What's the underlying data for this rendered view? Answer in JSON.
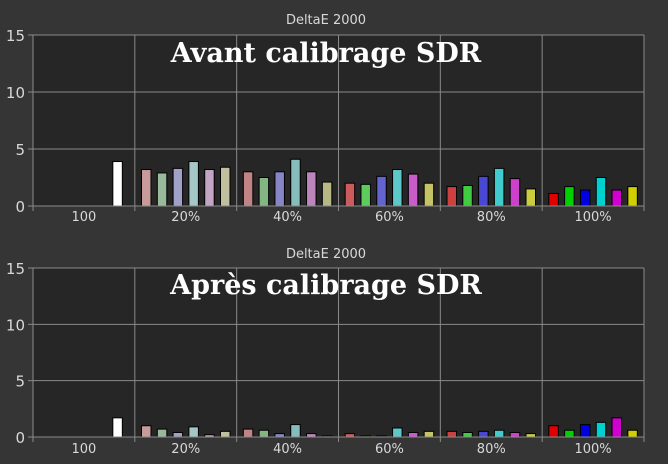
{
  "chart_data": [
    {
      "type": "bar",
      "title": "DeltaE 2000",
      "heading": "Avant calibrage SDR",
      "ylim": [
        0,
        15
      ],
      "yticks": [
        "0",
        "5",
        "10",
        "15"
      ],
      "categories": [
        "100",
        "20%",
        "40%",
        "60%",
        "80%",
        "100%"
      ],
      "grid": true,
      "groups": [
        {
          "label": "100",
          "bars": [
            {
              "color": "#ffffff",
              "value": 3.9
            }
          ]
        },
        {
          "label": "20%",
          "bars": [
            {
              "color": "#c89a9a",
              "value": 3.2
            },
            {
              "color": "#9ab89a",
              "value": 2.9
            },
            {
              "color": "#a0a0c8",
              "value": 3.3
            },
            {
              "color": "#a4c6c6",
              "value": 3.9
            },
            {
              "color": "#c4a4c4",
              "value": 3.2
            },
            {
              "color": "#c0c09e",
              "value": 3.4
            }
          ]
        },
        {
          "label": "40%",
          "bars": [
            {
              "color": "#c08484",
              "value": 3.0
            },
            {
              "color": "#84b684",
              "value": 2.5
            },
            {
              "color": "#8686c6",
              "value": 3.0
            },
            {
              "color": "#86bcbc",
              "value": 4.1
            },
            {
              "color": "#bc86bc",
              "value": 3.0
            },
            {
              "color": "#b8b886",
              "value": 2.1
            }
          ]
        },
        {
          "label": "60%",
          "bars": [
            {
              "color": "#cc5c5c",
              "value": 2.0
            },
            {
              "color": "#5ccc5c",
              "value": 1.9
            },
            {
              "color": "#6464d0",
              "value": 2.6
            },
            {
              "color": "#5cc8c8",
              "value": 3.2
            },
            {
              "color": "#c85cc8",
              "value": 2.8
            },
            {
              "color": "#c4c464",
              "value": 2.0
            }
          ]
        },
        {
          "label": "80%",
          "bars": [
            {
              "color": "#cc4040",
              "value": 1.7
            },
            {
              "color": "#40cc40",
              "value": 1.8
            },
            {
              "color": "#4848d4",
              "value": 2.6
            },
            {
              "color": "#40cccc",
              "value": 3.3
            },
            {
              "color": "#cc40cc",
              "value": 2.4
            },
            {
              "color": "#cccc40",
              "value": 1.5
            }
          ]
        },
        {
          "label": "100%",
          "bars": [
            {
              "color": "#e00000",
              "value": 1.1
            },
            {
              "color": "#00d000",
              "value": 1.7
            },
            {
              "color": "#0000e0",
              "value": 1.4
            },
            {
              "color": "#00d0d0",
              "value": 2.5
            },
            {
              "color": "#d000d0",
              "value": 1.4
            },
            {
              "color": "#d0d000",
              "value": 1.7
            }
          ]
        }
      ]
    },
    {
      "type": "bar",
      "title": "DeltaE 2000",
      "heading": "Après calibrage SDR",
      "ylim": [
        0,
        15
      ],
      "yticks": [
        "0",
        "5",
        "10",
        "15"
      ],
      "categories": [
        "100",
        "20%",
        "40%",
        "60%",
        "80%",
        "100%"
      ],
      "grid": true,
      "groups": [
        {
          "label": "100",
          "bars": [
            {
              "color": "#ffffff",
              "value": 1.7
            }
          ]
        },
        {
          "label": "20%",
          "bars": [
            {
              "color": "#c89a9a",
              "value": 1.0
            },
            {
              "color": "#9ab89a",
              "value": 0.7
            },
            {
              "color": "#a0a0c8",
              "value": 0.4
            },
            {
              "color": "#a4c6c6",
              "value": 0.9
            },
            {
              "color": "#c4a4c4",
              "value": 0.2
            },
            {
              "color": "#c0c09e",
              "value": 0.5
            }
          ]
        },
        {
          "label": "40%",
          "bars": [
            {
              "color": "#c08484",
              "value": 0.7
            },
            {
              "color": "#84b684",
              "value": 0.6
            },
            {
              "color": "#8686c6",
              "value": 0.3
            },
            {
              "color": "#86bcbc",
              "value": 1.1
            },
            {
              "color": "#bc86bc",
              "value": 0.3
            },
            {
              "color": "#b8b886",
              "value": 0.1
            }
          ]
        },
        {
          "label": "60%",
          "bars": [
            {
              "color": "#cc5c5c",
              "value": 0.3
            },
            {
              "color": "#5ccc5c",
              "value": 0.1
            },
            {
              "color": "#6464d0",
              "value": 0.1
            },
            {
              "color": "#5cc8c8",
              "value": 0.8
            },
            {
              "color": "#c85cc8",
              "value": 0.4
            },
            {
              "color": "#c4c464",
              "value": 0.5
            }
          ]
        },
        {
          "label": "80%",
          "bars": [
            {
              "color": "#cc4040",
              "value": 0.5
            },
            {
              "color": "#40cc40",
              "value": 0.4
            },
            {
              "color": "#4848d4",
              "value": 0.5
            },
            {
              "color": "#40cccc",
              "value": 0.6
            },
            {
              "color": "#cc40cc",
              "value": 0.4
            },
            {
              "color": "#cccc40",
              "value": 0.3
            }
          ]
        },
        {
          "label": "100%",
          "bars": [
            {
              "color": "#e00000",
              "value": 1.0
            },
            {
              "color": "#00d000",
              "value": 0.6
            },
            {
              "color": "#0000e0",
              "value": 1.1
            },
            {
              "color": "#00d0d0",
              "value": 1.3
            },
            {
              "color": "#d000d0",
              "value": 1.7
            },
            {
              "color": "#d0d000",
              "value": 0.6
            }
          ]
        }
      ]
    }
  ],
  "colors": {
    "page_background": "#353535",
    "plot_background": "#262626",
    "grid": "#8a8a8a",
    "text": "#d8d8d8",
    "heading": "#ffffff"
  }
}
